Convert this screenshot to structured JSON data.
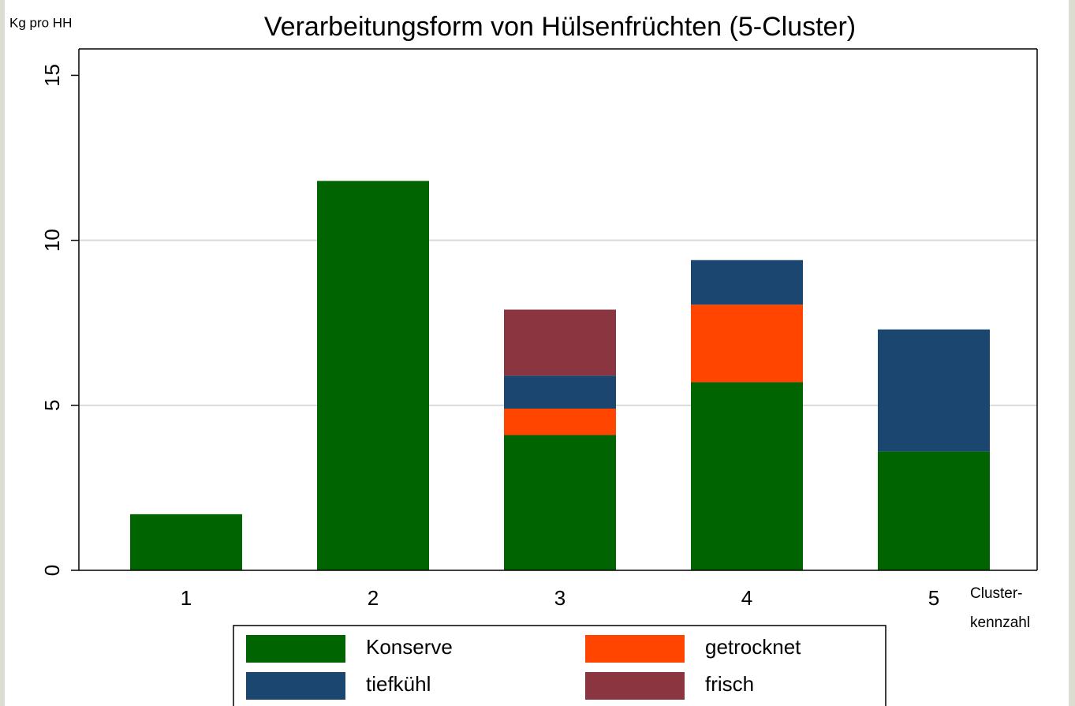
{
  "chart_data": {
    "type": "stacked_bar",
    "title": "Verarbeitungsform von Hülsenfrüchten (5-Cluster)",
    "y_label": "Kg pro HH",
    "x_label": [
      "Cluster-",
      "kennzahl"
    ],
    "categories": [
      "1",
      "2",
      "3",
      "4",
      "5"
    ],
    "series": [
      {
        "name": "Konserve",
        "color": "#006400",
        "values": [
          1.7,
          11.8,
          4.1,
          5.7,
          3.6
        ]
      },
      {
        "name": "getrocknet",
        "color": "#ff4500",
        "values": [
          0,
          0,
          0.8,
          2.35,
          0
        ]
      },
      {
        "name": "tiefkühl",
        "color": "#1b4670",
        "values": [
          0,
          0,
          1.0,
          1.35,
          3.7
        ]
      },
      {
        "name": "frisch",
        "color": "#8b3540",
        "values": [
          0,
          0,
          2.0,
          0,
          0
        ]
      }
    ],
    "ylim": [
      0,
      15.8
    ],
    "yticks": [
      0,
      5,
      10,
      15
    ],
    "grid": true
  }
}
